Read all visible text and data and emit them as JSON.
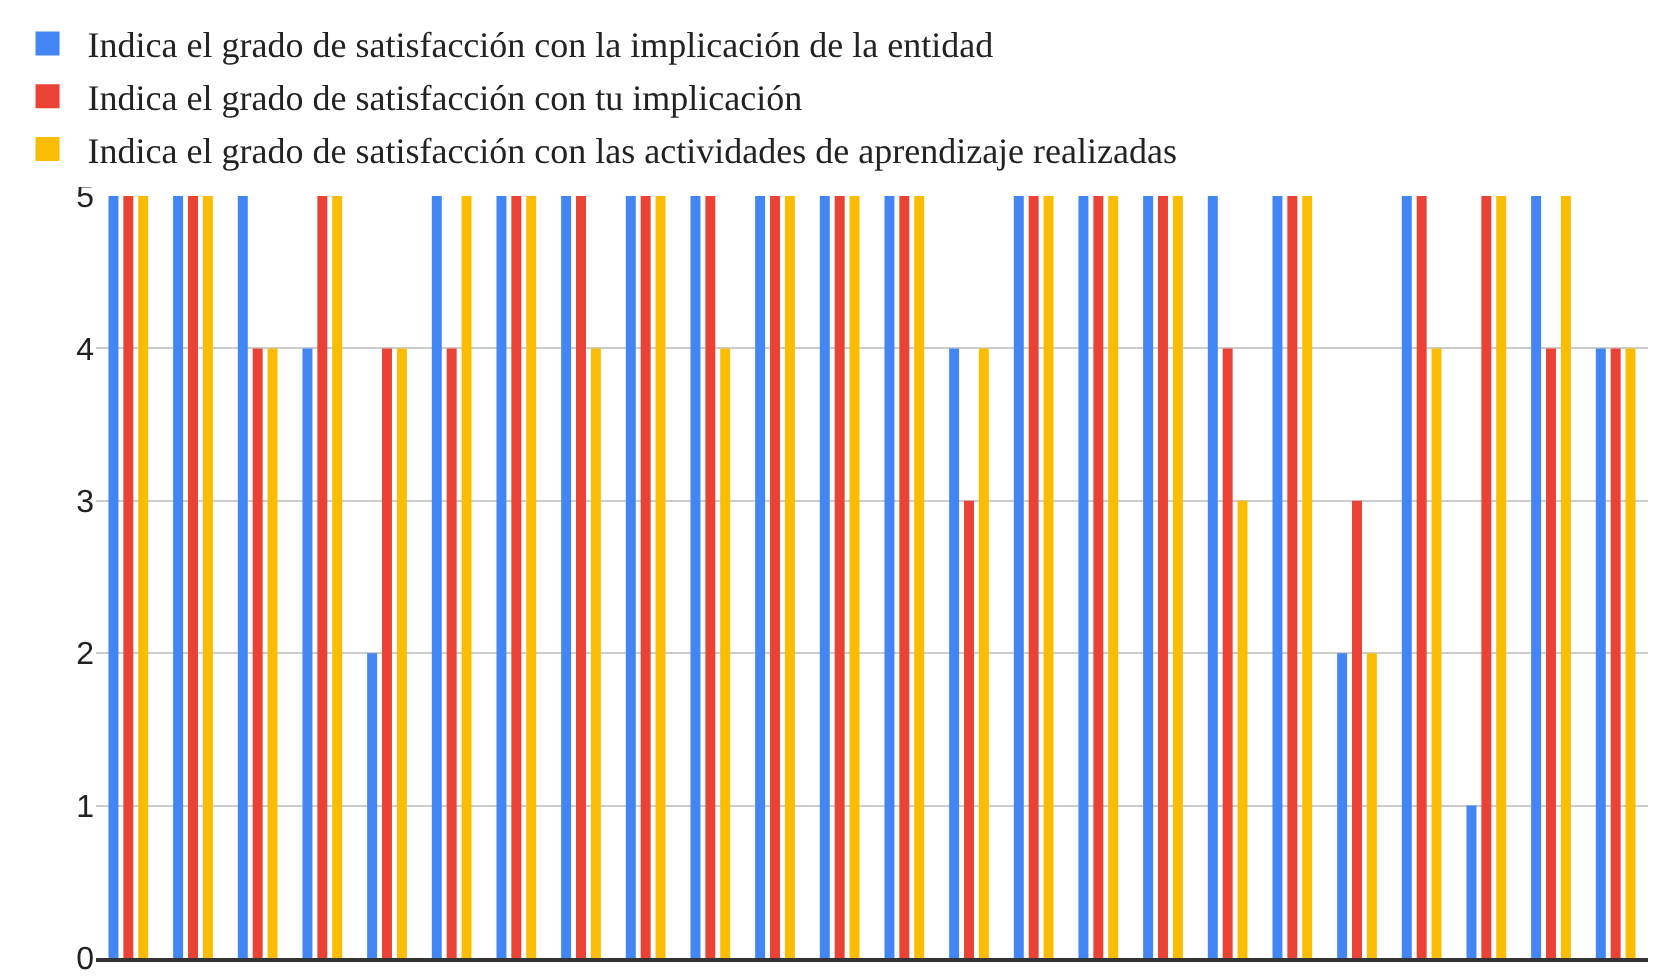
{
  "chart_data": {
    "type": "bar",
    "categories": [
      null,
      null,
      null,
      null,
      null,
      null,
      null,
      null,
      null,
      null,
      null,
      null,
      null,
      null,
      null,
      null,
      null,
      null,
      null,
      null,
      null,
      null,
      null,
      null
    ],
    "series": [
      {
        "name": "Indica el grado de satisfacción con la implicación de la entidad",
        "color": "#4285f4",
        "values": [
          5,
          5,
          5,
          4,
          2,
          5,
          5,
          5,
          5,
          5,
          5,
          5,
          5,
          4,
          5,
          5,
          5,
          5,
          5,
          2,
          5,
          1,
          5,
          4
        ]
      },
      {
        "name": "Indica el grado de satisfacción con tu implicación",
        "color": "#ea4335",
        "values": [
          5,
          5,
          4,
          5,
          4,
          4,
          5,
          5,
          5,
          5,
          5,
          5,
          5,
          3,
          5,
          5,
          5,
          4,
          5,
          3,
          5,
          5,
          4,
          4
        ]
      },
      {
        "name": "Indica el grado de satisfacción con las actividades de aprendizaje realizadas",
        "color": "#fbbc04",
        "values": [
          5,
          5,
          4,
          5,
          4,
          5,
          5,
          4,
          5,
          4,
          5,
          5,
          5,
          4,
          5,
          5,
          5,
          3,
          5,
          2,
          4,
          5,
          5,
          4
        ]
      }
    ],
    "ylim": [
      0,
      5
    ],
    "yticks": [
      0,
      1,
      2,
      3,
      4,
      5
    ],
    "grid": "y",
    "legend": "top"
  }
}
